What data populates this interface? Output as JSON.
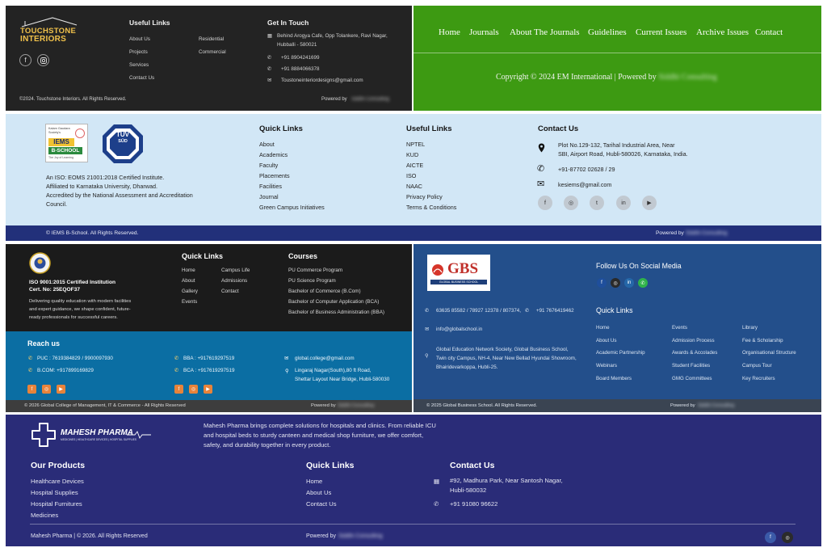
{
  "touchstone": {
    "logo_line1": "TOUCHSTONE",
    "logo_line2": "INTERIORS",
    "useful_links_title": "Useful Links",
    "links_col1": [
      "About Us",
      "Projects",
      "Services",
      "Contact Us"
    ],
    "links_col2": [
      "Residential",
      "Commercial"
    ],
    "contact_title": "Get In Touch",
    "address_line1": "Behind Arogya Cafe, Opp Tolankere, Ravi Nagar,",
    "address_line2": "Hubballi - 580021",
    "phone1": "+91 8904241699",
    "phone2": "+91 8884066378",
    "email": "Toustoneinteriordesigns@gmail.com",
    "copyright": "©2024. Touchstone Interiors. All Rights Reserved.",
    "powered_by": "Powered by",
    "powered_name": "Siddhi Consulting",
    "social_icons": [
      "facebook-icon",
      "instagram-icon"
    ]
  },
  "em": {
    "nav": [
      "Home",
      "Journals",
      "About The Journals",
      "Guidelines",
      "Current Issues",
      "Archive Issues",
      "Contact"
    ],
    "copyright": "Copyright © 2024 EM International  | Powered by",
    "powered_name": "Siddhi Consulting"
  },
  "iems": {
    "badge1_line1": "Kalam Gaudara Society's",
    "badge1_line2": "IEMS",
    "badge1_line3": "B-SCHOOL",
    "badge1_line4": "The Joy of Learning",
    "badge2_line1": "TÜV",
    "badge2_line2": "SÜD",
    "about_lines": [
      "An ISO: EOMS 21001:2018 Certified Institute.",
      "Affiliated to Karnataka University, Dharwad.",
      "Accredited by the National Assessment and Accreditation",
      "Council."
    ],
    "quick_title": "Quick Links",
    "quick_links": [
      "About",
      "Academics",
      "Faculty",
      "Placements",
      "Facilities",
      "Journal",
      "Green Campus Initiatives"
    ],
    "useful_title": "Useful Links",
    "useful_links": [
      "NPTEL",
      "KUD",
      "AICTE",
      "ISO",
      "NAAC",
      "Privacy Policy",
      "Terms & Conditions"
    ],
    "contact_title": "Contact Us",
    "address_line1": "Plot No.129-132, Tarihal Industrial Area, Near",
    "address_line2": "SBI, Airport Road, Hubli-580026, Karnataka, India.",
    "phone": "+91-87702 02628 / 29",
    "email": "kesiems@gmail.com",
    "social_icons": [
      "facebook-icon",
      "instagram-icon",
      "twitter-icon",
      "linkedin-icon",
      "youtube-icon"
    ],
    "copyright": "© IEMS B-School. All Rights Reserved.",
    "powered_by": "Powered by",
    "powered_name": "Siddhi Consulting"
  },
  "gcm": {
    "iso_line1": "ISO 9001:2015 Certified Institution",
    "iso_line2": "Cert. No: 25EQOF37",
    "desc_lines": [
      "Delivering quality education with modern facilities",
      "and expert guidance, we shape confident, future-",
      "ready professionals for successful careers."
    ],
    "quick_title": "Quick Links",
    "quick_col1": [
      "Home",
      "About",
      "Gallery",
      "Events"
    ],
    "quick_col2": [
      "Campus Life",
      "Admissions",
      "Contact"
    ],
    "courses_title": "Courses",
    "courses": [
      "PU Commerce Program",
      "PU Science Program",
      "Bachelor of Commerce (B.Com)",
      "Bachelor of Computer Application (BCA)",
      "Bachelor of Business Administration (BBA)"
    ],
    "reach_title": "Reach us",
    "puc": "PUC : 7619384829 / 9900097930",
    "bcom": "B.COM: +917899169829",
    "bba": "BBA : +917619297519",
    "bca": "BCA : +917619297519",
    "email": "global.college@gmail.com",
    "address_line1": "Lingaraj Nagar(South),80 ft Road,",
    "address_line2": "Shettar Layout Near Bridge, Hubli-580030",
    "copyright": "© 2026 Global College of Management, IT & Commerce - All Rights Reserved",
    "powered_by": "Powered by",
    "powered_name": "Siddhi Consulting"
  },
  "gbs": {
    "logo_top": "GBS",
    "logo_sub": "GLOBAL  BUSINESS  SCHOOL",
    "follow_title": "Follow Us On Social Media",
    "social_icons": [
      "facebook-icon",
      "instagram-icon",
      "linkedin-icon",
      "whatsapp-icon"
    ],
    "phone1": "63635 85582 / 78927 12378 / 807374,",
    "phone2": "+91 7676419462",
    "email": "info@globalschool.in",
    "address_lines": [
      "Global Education Network Society, Global Business School,",
      "Twin city Campus, NH-4, Near New Bellad Hyundai Showroom,",
      "Bhairidevarkoppa, Hubli-25."
    ],
    "quick_title": "Quick Links",
    "col1": [
      "Home",
      "About Us",
      "Academic Partnership",
      "Webinars",
      "Board Members"
    ],
    "col2": [
      "Events",
      "Admission Process",
      "Awards & Accolades",
      "Student Facilities",
      "GMG Committees"
    ],
    "col3": [
      "Library",
      "Fee & Scholarship",
      "Organisational Structure",
      "Campus Tour",
      "Key Recruiters"
    ],
    "copyright": "© 2025 Global Business School.  All Rights Reserved.",
    "powered_by": "Powered by",
    "powered_name": "Siddhi Consulting"
  },
  "mahesh": {
    "logo_name": "MAHESH PHARMA",
    "logo_tag": "MEDICINES | HEALTHCARE DEVICES | HOSPITAL SUPPLIES",
    "about_lines": [
      "Mahesh Pharma brings complete solutions for hospitals and clinics. From reliable ICU",
      "and hospital beds to sturdy canteen and medical shop furniture, we offer comfort,",
      "safety, and durability together in every product."
    ],
    "products_title": "Our Products",
    "products": [
      "Healthcare Devices",
      "Hospital Supplies",
      "Hospital Furnitures",
      "Medicines"
    ],
    "quick_title": "Quick Links",
    "quick_links": [
      "Home",
      "About Us",
      "Contact Us"
    ],
    "contact_title": "Contact Us",
    "address_line1": "#92, Madhura Park, Near Santosh Nagar,",
    "address_line2": "Hubli-580032",
    "phone": "+91 91080 96622",
    "copyright": "Mahesh Pharma | © 2026. All Rights Reserved",
    "powered_by": "Powered by",
    "powered_name": "Siddhi Consulting",
    "social_icons": [
      "facebook-icon",
      "instagram-icon"
    ]
  }
}
